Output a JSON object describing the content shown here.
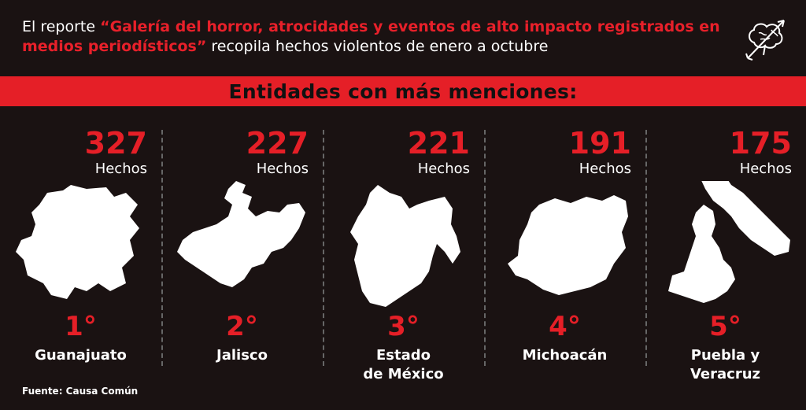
{
  "header": {
    "lead": "El reporte ",
    "quote": "“Galería del horror, atrocidades y eventos de alto impacto registrados en medios periodísticos”",
    "tail": " recopila hechos violentos de enero a octubre"
  },
  "logo": {
    "icon": "brain-arrow-icon"
  },
  "banner": {
    "title": "Entidades con más menciones:"
  },
  "colors": {
    "accent": "#e51f27",
    "background": "#1a1212",
    "text": "#ffffff"
  },
  "states": [
    {
      "count": "327",
      "unit": "Hechos",
      "rank": "1°",
      "name": "Guanajuato",
      "icon": "guanajuato-map-icon"
    },
    {
      "count": "227",
      "unit": "Hechos",
      "rank": "2°",
      "name": "Jalisco",
      "icon": "jalisco-map-icon"
    },
    {
      "count": "221",
      "unit": "Hechos",
      "rank": "3°",
      "name": "Estado de México",
      "icon": "estado-de-mexico-map-icon"
    },
    {
      "count": "191",
      "unit": "Hechos",
      "rank": "4°",
      "name": "Michoacán",
      "icon": "michoacan-map-icon"
    },
    {
      "count": "175",
      "unit": "Hechos",
      "rank": "5°",
      "name": "Puebla y Veracruz",
      "icon": "puebla-veracruz-map-icon"
    }
  ],
  "footer": {
    "source": "Fuente: Causa Común"
  }
}
